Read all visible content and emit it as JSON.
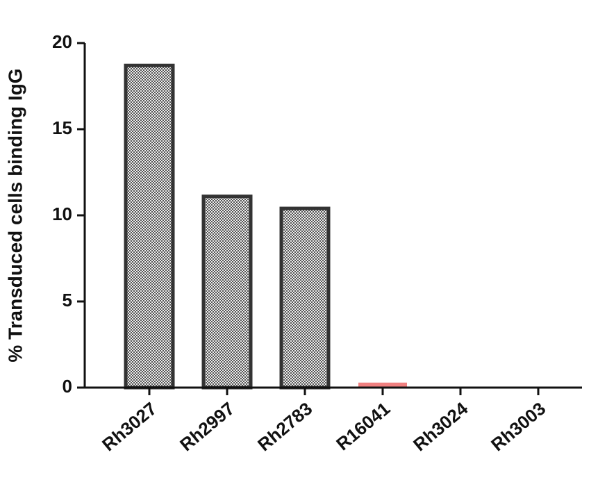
{
  "chart_data": {
    "type": "bar",
    "y_label": "% Transduced cells binding IgG",
    "categories": [
      "Rh3027",
      "Rh2997",
      "Rh2783",
      "R16041",
      "Rh3024",
      "Rh3003"
    ],
    "values": [
      18.7,
      11.1,
      10.4,
      0.25,
      0,
      0
    ],
    "colors": [
      "#333333",
      "#333333",
      "#333333",
      "#f08080",
      "#333333",
      "#333333"
    ],
    "ylim": [
      0,
      20
    ],
    "yticks": [
      0,
      5,
      10,
      15,
      20
    ],
    "grid": false
  }
}
